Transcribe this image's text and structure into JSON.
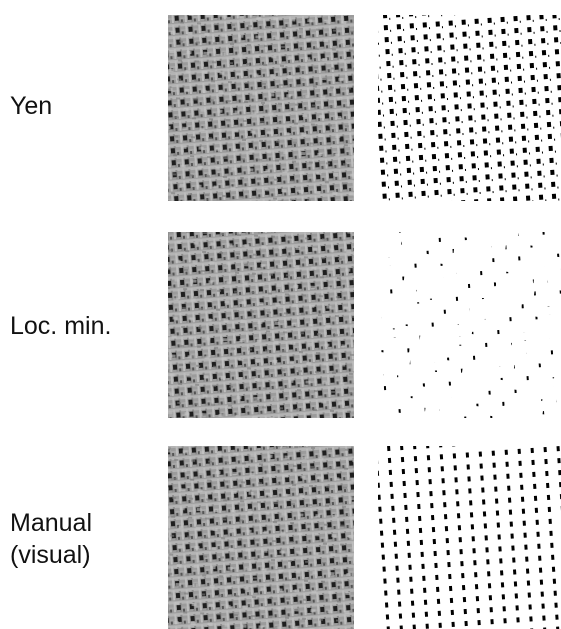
{
  "rows": [
    {
      "label": [
        "Yen"
      ]
    },
    {
      "label": [
        "Loc. min."
      ]
    },
    {
      "label": [
        "Manual",
        "(visual)"
      ]
    }
  ]
}
